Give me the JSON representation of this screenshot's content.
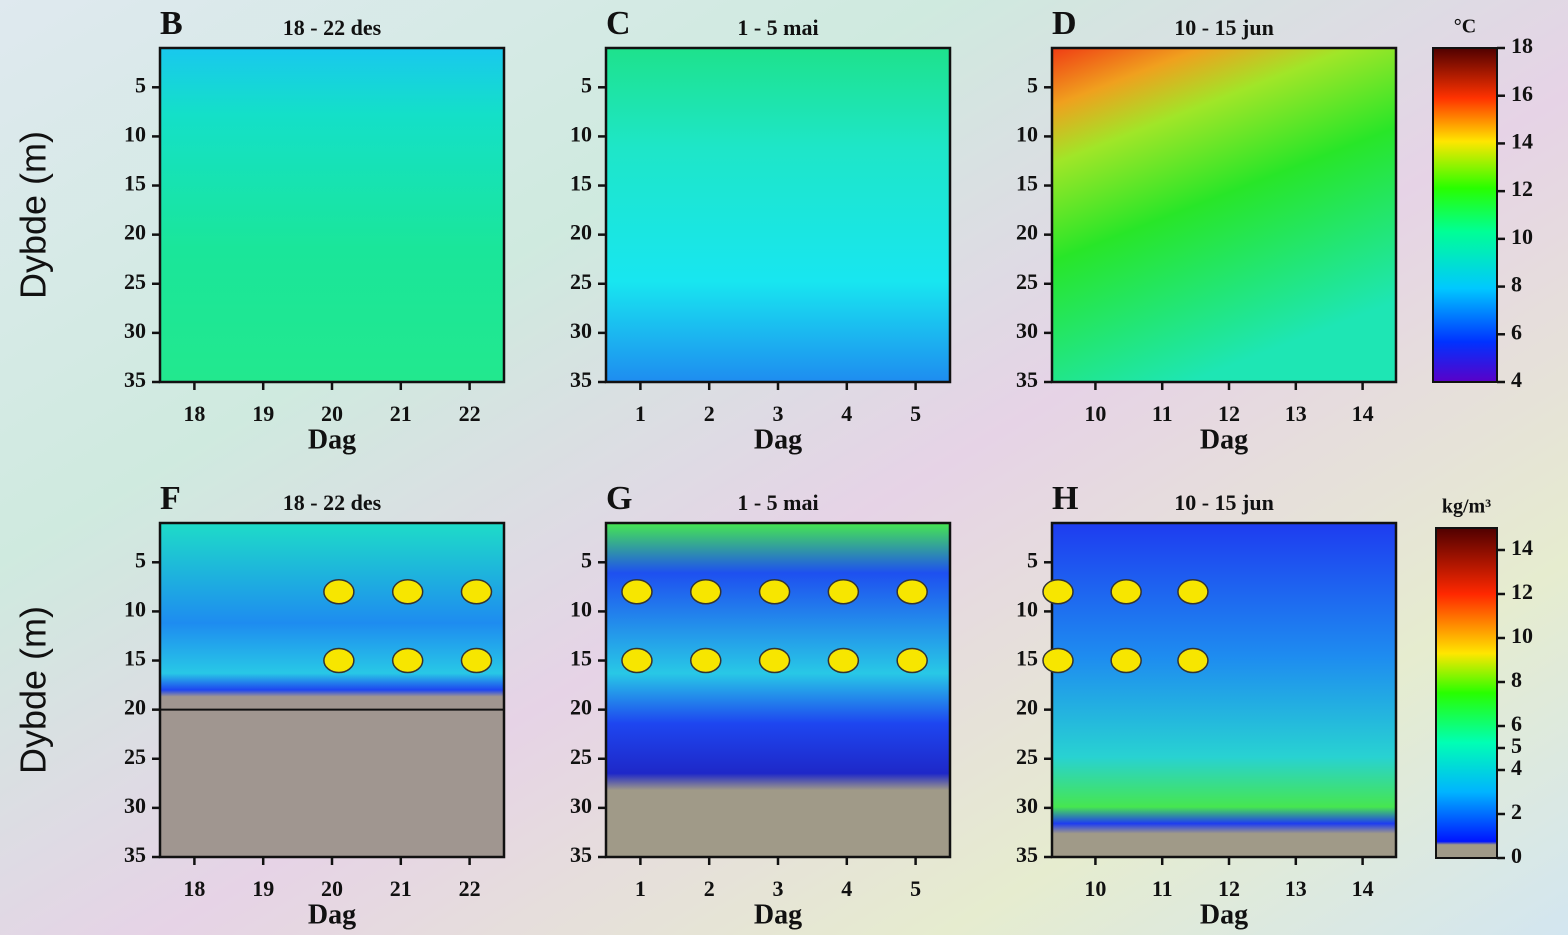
{
  "chart_data": [
    {
      "type": "heatmap",
      "panel": "B",
      "title": "18 - 22 des",
      "x_label": "Dag",
      "y_label": "Dybde (m)",
      "xlim": [
        17.5,
        22.5
      ],
      "xticks": [
        18,
        19,
        20,
        21,
        22
      ],
      "ylim": [
        35,
        1
      ],
      "yticks": [
        5,
        10,
        15,
        20,
        25,
        30,
        35
      ]
    },
    {
      "type": "heatmap",
      "panel": "C",
      "title": "1 - 5 mai",
      "x_label": "Dag",
      "xlim": [
        0.5,
        5.5
      ],
      "xticks": [
        1,
        2,
        3,
        4,
        5
      ],
      "ylim": [
        35,
        1
      ],
      "yticks": [
        5,
        10,
        15,
        20,
        25,
        30,
        35
      ]
    },
    {
      "type": "heatmap",
      "panel": "D",
      "title": "10 - 15 jun",
      "x_label": "Dag",
      "xlim": [
        9.35,
        14.5
      ],
      "xticks": [
        10,
        11,
        12,
        13,
        14
      ],
      "ylim": [
        35,
        1
      ],
      "yticks": [
        5,
        10,
        15,
        20,
        25,
        30,
        35
      ]
    },
    {
      "type": "heatmap",
      "panel": "F",
      "title": "18 - 22 des",
      "x_label": "Dag",
      "y_label": "Dybde (m)",
      "xlim": [
        17.5,
        22.5
      ],
      "xticks": [
        18,
        19,
        20,
        21,
        22
      ],
      "ylim": [
        35,
        1
      ],
      "yticks": [
        5,
        10,
        15,
        20,
        25,
        30,
        35
      ],
      "points": {
        "color": "#f7e600",
        "x": [
          20.1,
          21.1,
          22.1,
          20.1,
          21.1,
          22.1
        ],
        "y": [
          8,
          8,
          8,
          15,
          15,
          15
        ]
      }
    },
    {
      "type": "heatmap",
      "panel": "G",
      "title": "1 - 5 mai",
      "x_label": "Dag",
      "xlim": [
        0.5,
        5.5
      ],
      "xticks": [
        1,
        2,
        3,
        4,
        5
      ],
      "ylim": [
        35,
        1
      ],
      "yticks": [
        5,
        10,
        15,
        20,
        25,
        30,
        35
      ],
      "points": {
        "color": "#f7e600",
        "x": [
          0.95,
          1.95,
          2.95,
          3.95,
          4.95,
          0.95,
          1.95,
          2.95,
          3.95,
          4.95
        ],
        "y": [
          8,
          8,
          8,
          8,
          8,
          15,
          15,
          15,
          15,
          15
        ]
      }
    },
    {
      "type": "heatmap",
      "panel": "H",
      "title": "10 - 15 jun",
      "x_label": "Dag",
      "xlim": [
        9.35,
        14.5
      ],
      "xticks": [
        10,
        11,
        12,
        13,
        14
      ],
      "ylim": [
        35,
        1
      ],
      "yticks": [
        5,
        10,
        15,
        20,
        25,
        30,
        35
      ],
      "points": {
        "color": "#f7e600",
        "x": [
          9.44,
          10.46,
          11.46,
          9.44,
          10.46,
          11.46
        ],
        "y": [
          8,
          8,
          8,
          15,
          15,
          15
        ]
      }
    }
  ],
  "colorbars": [
    {
      "unit": "°C",
      "ylim": [
        4,
        18
      ],
      "yticks": [
        4,
        6,
        8,
        10,
        12,
        14,
        16,
        18
      ]
    },
    {
      "unit": "kg/m³",
      "ylim": [
        0,
        15
      ],
      "yticks": [
        0,
        2,
        4,
        5,
        6,
        8,
        10,
        12,
        14
      ]
    }
  ]
}
